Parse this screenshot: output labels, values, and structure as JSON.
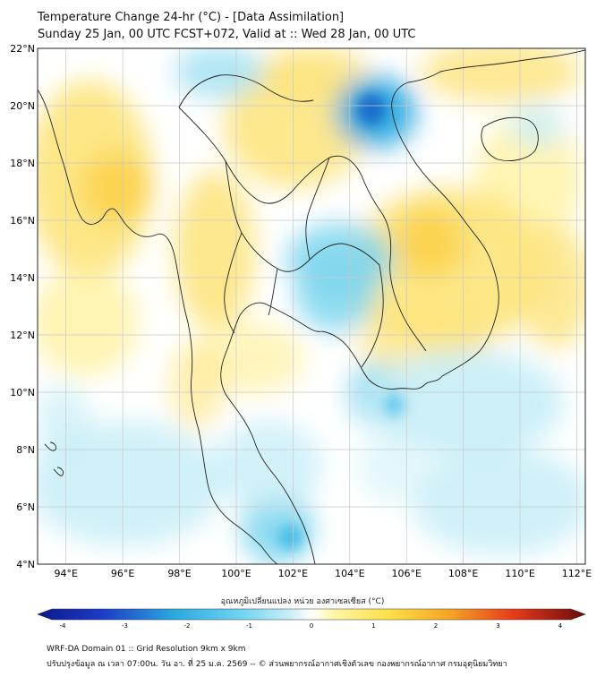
{
  "title_line1": "Temperature Change 24-hr (°C) - [Data Assimilation]",
  "title_line2": "Sunday 25 Jan, 00 UTC FCST+072, Valid at :: Wed 28 Jan, 00 UTC",
  "lat_labels": [
    "4°N",
    "6°N",
    "8°N",
    "10°N",
    "12°N",
    "14°N",
    "16°N",
    "18°N",
    "20°N",
    "22°N"
  ],
  "lon_labels": [
    "94°E",
    "96°E",
    "98°E",
    "100°E",
    "102°E",
    "104°E",
    "106°E",
    "108°E",
    "110°E",
    "112°E"
  ],
  "colorbar": {
    "title": "อุณหภูมิเปลี่ยนแปลง หน่วย องศาเซลเซียส (°C)",
    "ticks": [
      "-4",
      "-3",
      "-2",
      "-1",
      "0",
      "1",
      "2",
      "3",
      "4"
    ],
    "min": -4,
    "max": 4
  },
  "footer_line1": "WRF-DA Domain 01 :: Grid Resolution 9km x 9km",
  "footer_line2": "ปรับปรุงข้อมูล ณ เวลา 07:00น. วัน อา. ที่ 25 ม.ค. 2569 -- © ส่วนพยากรณ์อากาศเชิงตัวเลข กองพยากรณ์อากาศ กรมอุตุนิยมวิทยา",
  "colors": {
    "warm_light": "#fff6a8",
    "warm": "#fde47a",
    "warm_strong": "#fbd045",
    "cool_light": "#c8eef7",
    "cool": "#7fd6ee",
    "cool_strong": "#2aa9e0",
    "cool_deep": "#1a66c8",
    "land_outline": "#222222",
    "grid": "#c8c8c8"
  }
}
